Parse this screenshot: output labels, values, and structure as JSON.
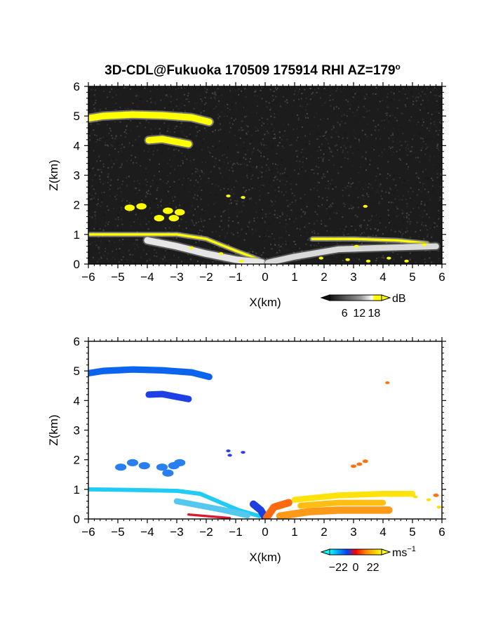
{
  "title": "3D-CDL@Fukuoka 170509 175914 RHI AZ=179",
  "title_superscript": "o",
  "chart_data": [
    {
      "type": "heatmap",
      "panel": "top",
      "quantity": "backscatter intensity",
      "xlabel": "X(km)",
      "ylabel": "Z(km)",
      "xlim": [
        -6,
        6
      ],
      "ylim": [
        0,
        6
      ],
      "xticks": [
        "−6",
        "−5",
        "−4",
        "−3",
        "−2",
        "−1",
        "0",
        "1",
        "2",
        "3",
        "4",
        "5",
        "6"
      ],
      "yticks": [
        "0",
        "1",
        "2",
        "3",
        "4",
        "5",
        "6"
      ],
      "background_color": "#1c1c1c",
      "colorbar": {
        "unit": "dB",
        "ticks": [
          "6",
          "12",
          "18"
        ],
        "tick_values": [
          6,
          12,
          18
        ],
        "range": [
          0,
          21
        ],
        "colors": [
          "#111111",
          "#777777",
          "#ffffff",
          "#ffff00"
        ],
        "extend": "both"
      },
      "features": [
        {
          "kind": "layer",
          "color": "#ffff00",
          "points": [
            [
              -6.0,
              4.92
            ],
            [
              -5.5,
              5.0
            ],
            [
              -4.5,
              5.05
            ],
            [
              -3.5,
              5.02
            ],
            [
              -2.5,
              4.95
            ],
            [
              -1.9,
              4.8
            ]
          ],
          "thickness_km": 0.22,
          "edge_color": "#bbbbbb"
        },
        {
          "kind": "layer",
          "color": "#ffff00",
          "points": [
            [
              -3.95,
              4.18
            ],
            [
              -3.5,
              4.22
            ],
            [
              -2.6,
              4.05
            ]
          ],
          "thickness_km": 0.22,
          "edge_color": "#aaaaaa"
        },
        {
          "kind": "layer",
          "color": "#ffff00",
          "points": [
            [
              -6.0,
              1.0
            ],
            [
              -4.5,
              1.0
            ],
            [
              -3.0,
              1.0
            ],
            [
              -2.0,
              0.85
            ],
            [
              -1.0,
              0.45
            ],
            [
              -0.2,
              0.15
            ]
          ],
          "thickness_km": 0.08,
          "edge_color": "#cccccc"
        },
        {
          "kind": "layer",
          "color": "#ffff00",
          "points": [
            [
              1.6,
              0.85
            ],
            [
              3.0,
              0.85
            ],
            [
              4.5,
              0.8
            ],
            [
              5.5,
              0.7
            ]
          ],
          "thickness_km": 0.08,
          "edge_color": "#cccccc"
        },
        {
          "kind": "layer",
          "color": "#e6e6e6",
          "points": [
            [
              -4.0,
              0.8
            ],
            [
              -3.0,
              0.6
            ],
            [
              -2.0,
              0.35
            ],
            [
              -1.0,
              0.15
            ],
            [
              -0.1,
              0.05
            ]
          ],
          "thickness_km": 0.22,
          "edge_color": "#888888"
        },
        {
          "kind": "layer",
          "color": "#d9d9d9",
          "points": [
            [
              0.1,
              0.05
            ],
            [
              1.0,
              0.25
            ],
            [
              2.5,
              0.5
            ],
            [
              4.0,
              0.55
            ],
            [
              5.8,
              0.6
            ]
          ],
          "thickness_km": 0.2,
          "edge_color": "#777777"
        },
        {
          "kind": "blob",
          "color": "#ffff00",
          "points": [
            [
              -4.6,
              1.9
            ],
            [
              -4.2,
              1.95
            ],
            [
              -3.6,
              1.55
            ],
            [
              -3.3,
              1.8
            ],
            [
              -3.1,
              1.55
            ],
            [
              -2.9,
              1.75
            ]
          ],
          "size_km": 0.18
        },
        {
          "kind": "blob",
          "color": "#ffff00",
          "points": [
            [
              -2.5,
              0.55
            ],
            [
              -1.5,
              0.35
            ],
            [
              -0.8,
              0.1
            ],
            [
              1.9,
              0.2
            ],
            [
              2.8,
              0.15
            ],
            [
              3.1,
              0.6
            ],
            [
              3.5,
              0.1
            ],
            [
              4.2,
              0.2
            ],
            [
              4.8,
              0.1
            ],
            [
              5.4,
              0.65
            ],
            [
              3.4,
              1.95
            ],
            [
              -1.25,
              2.3
            ],
            [
              -0.75,
              2.25
            ]
          ],
          "size_km": 0.08
        }
      ]
    },
    {
      "type": "heatmap",
      "panel": "bottom",
      "quantity": "radial velocity",
      "xlabel": "X(km)",
      "ylabel": "Z(km)",
      "xlim": [
        -6,
        6
      ],
      "ylim": [
        0,
        6
      ],
      "xticks": [
        "−6",
        "−5",
        "−4",
        "−3",
        "−2",
        "−1",
        "0",
        "1",
        "2",
        "3",
        "4",
        "5",
        "6"
      ],
      "yticks": [
        "0",
        "1",
        "2",
        "3",
        "4",
        "5",
        "6"
      ],
      "background_color": "#ffffff",
      "colorbar": {
        "unit": "ms",
        "unit_superscript": "−1",
        "ticks": [
          "−22",
          "0",
          "22"
        ],
        "tick_values": [
          -22,
          0,
          22
        ],
        "range": [
          -33,
          33
        ],
        "colors": [
          "#00ffff",
          "#0044ff",
          "#ff0000",
          "#ffff00"
        ],
        "extend": "both"
      },
      "features": [
        {
          "kind": "layer",
          "color": "#0a64ee",
          "points": [
            [
              -6.0,
              4.92
            ],
            [
              -5.5,
              5.0
            ],
            [
              -4.5,
              5.05
            ],
            [
              -3.5,
              5.02
            ],
            [
              -2.5,
              4.95
            ],
            [
              -1.9,
              4.8
            ]
          ],
          "thickness_km": 0.22
        },
        {
          "kind": "layer",
          "color": "#1e40e6",
          "points": [
            [
              -3.95,
              4.2
            ],
            [
              -3.5,
              4.22
            ],
            [
              -2.6,
              4.05
            ]
          ],
          "thickness_km": 0.22
        },
        {
          "kind": "layer",
          "color": "#20ccf5",
          "points": [
            [
              -6.0,
              1.0
            ],
            [
              -4.5,
              0.98
            ],
            [
              -3.0,
              0.95
            ],
            [
              -2.2,
              0.85
            ],
            [
              -1.5,
              0.55
            ],
            [
              -0.9,
              0.3
            ],
            [
              -0.2,
              0.1
            ]
          ],
          "thickness_km": 0.14
        },
        {
          "kind": "layer",
          "color": "#55c8f0",
          "points": [
            [
              -3.0,
              0.6
            ],
            [
              -2.2,
              0.45
            ],
            [
              -1.4,
              0.3
            ],
            [
              -0.6,
              0.12
            ]
          ],
          "thickness_km": 0.2
        },
        {
          "kind": "layer",
          "color": "#1d3fe0",
          "points": [
            [
              -0.4,
              0.5
            ],
            [
              -0.15,
              0.3
            ],
            [
              0.0,
              0.05
            ]
          ],
          "thickness_km": 0.25
        },
        {
          "kind": "layer",
          "color": "#ff6a10",
          "points": [
            [
              0.05,
              0.05
            ],
            [
              0.3,
              0.4
            ],
            [
              0.8,
              0.55
            ]
          ],
          "thickness_km": 0.25
        },
        {
          "kind": "layer",
          "color": "#ff9a18",
          "points": [
            [
              0.5,
              0.1
            ],
            [
              1.5,
              0.25
            ],
            [
              2.5,
              0.3
            ],
            [
              3.5,
              0.3
            ],
            [
              4.2,
              0.3
            ]
          ],
          "thickness_km": 0.25
        },
        {
          "kind": "layer",
          "color": "#ffe20a",
          "points": [
            [
              1.0,
              0.65
            ],
            [
              2.5,
              0.8
            ],
            [
              4.0,
              0.85
            ],
            [
              5.0,
              0.85
            ]
          ],
          "thickness_km": 0.2
        },
        {
          "kind": "layer",
          "color": "#ffbe14",
          "points": [
            [
              1.2,
              0.45
            ],
            [
              2.5,
              0.55
            ],
            [
              4.0,
              0.55
            ]
          ],
          "thickness_km": 0.2
        },
        {
          "kind": "layer",
          "color": "#d81c2e",
          "points": [
            [
              -2.6,
              0.15
            ],
            [
              -1.8,
              0.08
            ],
            [
              -1.2,
              0.03
            ]
          ],
          "thickness_km": 0.08
        },
        {
          "kind": "blob",
          "color": "#2a7ff0",
          "points": [
            [
              -4.9,
              1.75
            ],
            [
              -4.5,
              1.9
            ],
            [
              -4.1,
              1.8
            ],
            [
              -3.5,
              1.75
            ],
            [
              -3.3,
              1.55
            ],
            [
              -3.1,
              1.8
            ],
            [
              -2.9,
              1.9
            ]
          ],
          "size_km": 0.2
        },
        {
          "kind": "blob",
          "color": "#ff7410",
          "points": [
            [
              3.4,
              1.95
            ],
            [
              3.2,
              1.85
            ],
            [
              3.0,
              1.78
            ],
            [
              5.8,
              0.8
            ]
          ],
          "size_km": 0.1
        },
        {
          "kind": "blob",
          "color": "#3040e0",
          "points": [
            [
              -1.25,
              2.3
            ],
            [
              -0.75,
              2.25
            ],
            [
              -1.2,
              2.15
            ]
          ],
          "size_km": 0.06
        },
        {
          "kind": "blob",
          "color": "#ff7410",
          "points": [
            [
              4.15,
              4.6
            ]
          ],
          "size_km": 0.06
        },
        {
          "kind": "blob",
          "color": "#ffdd00",
          "points": [
            [
              5.1,
              0.75
            ],
            [
              5.9,
              0.4
            ],
            [
              5.55,
              0.65
            ]
          ],
          "size_km": 0.08
        }
      ]
    }
  ]
}
